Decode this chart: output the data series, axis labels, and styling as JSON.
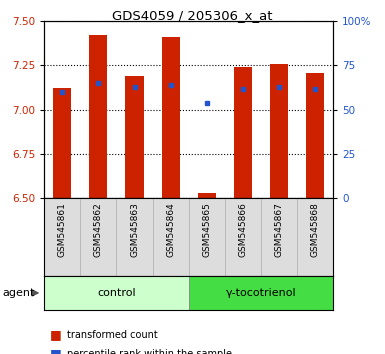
{
  "title": "GDS4059 / 205306_x_at",
  "samples": [
    "GSM545861",
    "GSM545862",
    "GSM545863",
    "GSM545864",
    "GSM545865",
    "GSM545866",
    "GSM545867",
    "GSM545868"
  ],
  "red_values": [
    7.12,
    7.42,
    7.19,
    7.41,
    6.53,
    7.24,
    7.26,
    7.21
  ],
  "blue_values": [
    7.1,
    7.15,
    7.13,
    7.14,
    7.04,
    7.12,
    7.13,
    7.12
  ],
  "ylim_left": [
    6.5,
    7.5
  ],
  "ylim_right": [
    0,
    100
  ],
  "yticks_left": [
    6.5,
    6.75,
    7.0,
    7.25,
    7.5
  ],
  "yticks_right": [
    0,
    25,
    50,
    75,
    100
  ],
  "bar_bottom": 6.5,
  "bar_color": "#cc2200",
  "dot_color": "#2255cc",
  "group_labels": [
    "control",
    "γ-tocotrienol"
  ],
  "ctrl_color": "#ccffcc",
  "gamma_color": "#44dd44",
  "label_color_left": "#cc2200",
  "label_color_right": "#2255cc"
}
